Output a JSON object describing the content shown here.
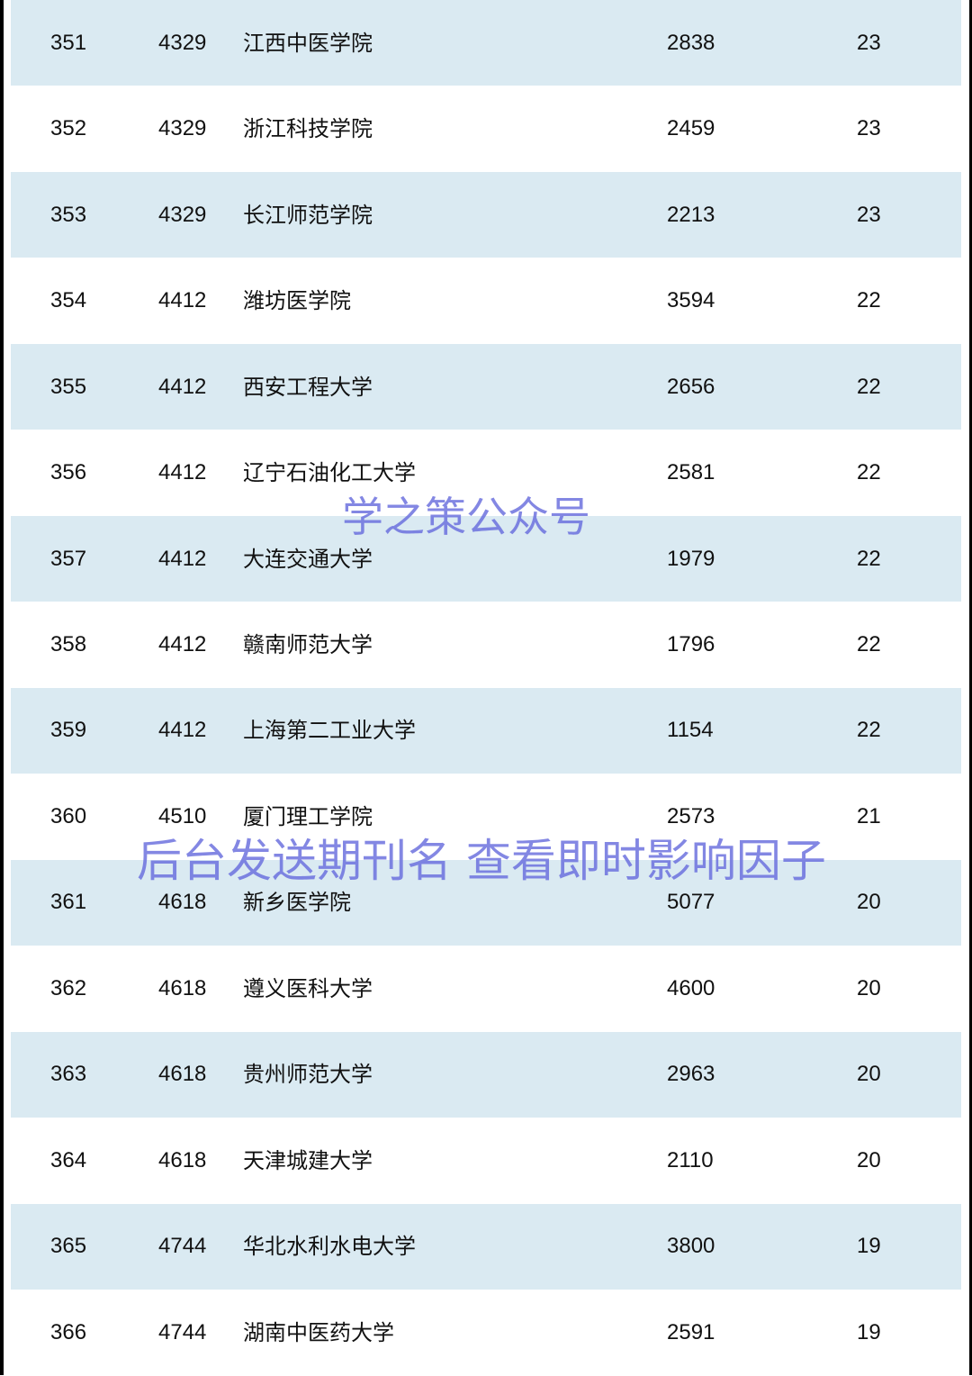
{
  "rows": [
    {
      "rank": "351",
      "score": "4329",
      "name": "江西中医学院",
      "value": "2838",
      "count": "23"
    },
    {
      "rank": "352",
      "score": "4329",
      "name": "浙江科技学院",
      "value": "2459",
      "count": "23"
    },
    {
      "rank": "353",
      "score": "4329",
      "name": "长江师范学院",
      "value": "2213",
      "count": "23"
    },
    {
      "rank": "354",
      "score": "4412",
      "name": "潍坊医学院",
      "value": "3594",
      "count": "22"
    },
    {
      "rank": "355",
      "score": "4412",
      "name": "西安工程大学",
      "value": "2656",
      "count": "22"
    },
    {
      "rank": "356",
      "score": "4412",
      "name": "辽宁石油化工大学",
      "value": "2581",
      "count": "22"
    },
    {
      "rank": "357",
      "score": "4412",
      "name": "大连交通大学",
      "value": "1979",
      "count": "22"
    },
    {
      "rank": "358",
      "score": "4412",
      "name": "赣南师范大学",
      "value": "1796",
      "count": "22"
    },
    {
      "rank": "359",
      "score": "4412",
      "name": "上海第二工业大学",
      "value": "1154",
      "count": "22"
    },
    {
      "rank": "360",
      "score": "4510",
      "name": "厦门理工学院",
      "value": "2573",
      "count": "21"
    },
    {
      "rank": "361",
      "score": "4618",
      "name": "新乡医学院",
      "value": "5077",
      "count": "20"
    },
    {
      "rank": "362",
      "score": "4618",
      "name": "遵义医科大学",
      "value": "4600",
      "count": "20"
    },
    {
      "rank": "363",
      "score": "4618",
      "name": "贵州师范大学",
      "value": "2963",
      "count": "20"
    },
    {
      "rank": "364",
      "score": "4618",
      "name": "天津城建大学",
      "value": "2110",
      "count": "20"
    },
    {
      "rank": "365",
      "score": "4744",
      "name": "华北水利水电大学",
      "value": "3800",
      "count": "19"
    },
    {
      "rank": "366",
      "score": "4744",
      "name": "湖南中医药大学",
      "value": "2591",
      "count": "19"
    }
  ],
  "watermarks": {
    "account": "学之策公众号",
    "notice": "后台发送期刊名 查看即时影响因子"
  },
  "colors": {
    "alt_row": "#daeaf2",
    "watermark": "#6469dc"
  }
}
